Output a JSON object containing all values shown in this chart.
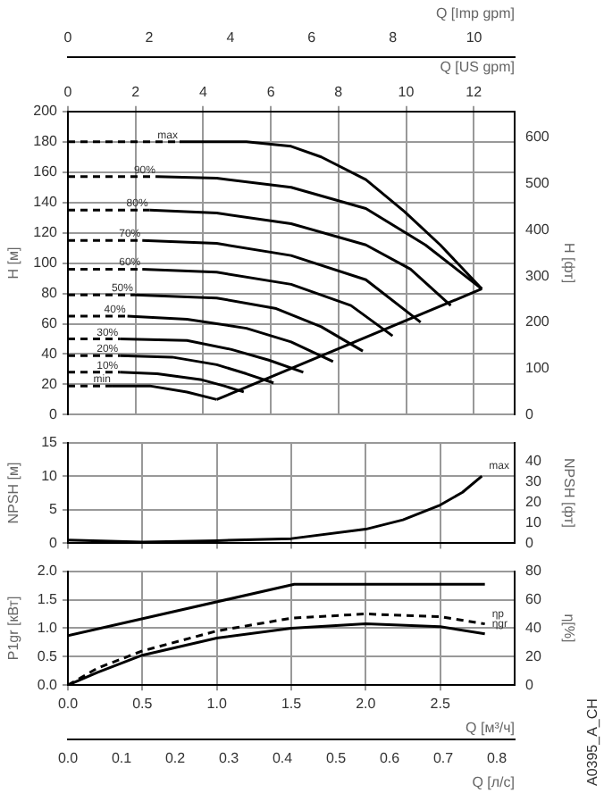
{
  "chart_data": [
    {
      "type": "line",
      "ylabel": "H [м]",
      "y2label": "H [фт]",
      "xlabel": "Q [US gpm]",
      "x2label": "Q [Imp gpm]",
      "xlim": [
        0,
        13.21
      ],
      "xticks": [
        0,
        2,
        4,
        6,
        8,
        10,
        12
      ],
      "x2lim": [
        0,
        11
      ],
      "x2ticks": [
        0,
        2,
        4,
        6,
        8,
        10
      ],
      "ylim": [
        0,
        200
      ],
      "yticks": [
        0,
        20,
        40,
        60,
        80,
        100,
        120,
        140,
        160,
        180,
        200
      ],
      "y2lim": [
        0,
        656
      ],
      "y2ticks": [
        0,
        100,
        200,
        300,
        400,
        500,
        600
      ],
      "grid": true,
      "legend": false,
      "marker": "none",
      "line_style": "solid",
      "series": [
        {
          "color": "#000000",
          "line_style": "dashed",
          "x": [
            0,
            3.3
          ],
          "values": [
            180,
            180
          ]
        },
        {
          "name": "max",
          "color": "#000000",
          "x": [
            3.3,
            5.28,
            6.6,
            7.49,
            8.81,
            9.95,
            11.01,
            12.24
          ],
          "values": [
            180,
            180,
            177,
            170,
            155,
            134,
            112,
            83
          ]
        },
        {
          "color": "#000000",
          "line_style": "dashed",
          "x": [
            0,
            2.64
          ],
          "values": [
            157,
            157
          ]
        },
        {
          "name": "90%",
          "color": "#000000",
          "x": [
            2.64,
            4.4,
            6.6,
            8.81,
            10.57,
            12.24
          ],
          "values": [
            157,
            156,
            150,
            136,
            112,
            83
          ]
        },
        {
          "color": "#000000",
          "line_style": "dashed",
          "x": [
            0,
            2.42
          ],
          "values": [
            135,
            135
          ]
        },
        {
          "name": "80%",
          "color": "#000000",
          "x": [
            2.42,
            4.4,
            6.6,
            8.81,
            10.13,
            11.32
          ],
          "values": [
            135,
            133,
            126,
            112,
            96,
            72
          ]
        },
        {
          "color": "#000000",
          "line_style": "dashed",
          "x": [
            0,
            2.2
          ],
          "values": [
            115,
            115
          ]
        },
        {
          "name": "70%",
          "color": "#000000",
          "x": [
            2.2,
            4.4,
            6.6,
            8.81,
            10.43
          ],
          "values": [
            115,
            113,
            105,
            89,
            61
          ]
        },
        {
          "color": "#000000",
          "line_style": "dashed",
          "x": [
            0,
            2.2
          ],
          "values": [
            96,
            96
          ]
        },
        {
          "name": "60%",
          "color": "#000000",
          "x": [
            2.2,
            4.4,
            6.6,
            8.37,
            9.6
          ],
          "values": [
            96,
            94,
            86,
            72,
            52
          ]
        },
        {
          "color": "#000000",
          "line_style": "dashed",
          "x": [
            0,
            1.98
          ],
          "values": [
            79,
            79
          ]
        },
        {
          "name": "50%",
          "color": "#000000",
          "x": [
            1.98,
            4.4,
            6.16,
            7.49,
            8.72
          ],
          "values": [
            79,
            77,
            70,
            58,
            42
          ]
        },
        {
          "color": "#000000",
          "line_style": "dashed",
          "x": [
            0,
            1.76
          ],
          "values": [
            65,
            65
          ]
        },
        {
          "name": "40%",
          "color": "#000000",
          "x": [
            1.76,
            3.52,
            5.28,
            6.6,
            7.84
          ],
          "values": [
            65,
            63,
            57,
            48,
            35
          ]
        },
        {
          "color": "#000000",
          "line_style": "dashed",
          "x": [
            0,
            1.54
          ],
          "values": [
            50,
            50
          ]
        },
        {
          "name": "30%",
          "color": "#000000",
          "x": [
            1.54,
            3.52,
            4.84,
            5.94,
            6.96
          ],
          "values": [
            50,
            49,
            43,
            36,
            28
          ]
        },
        {
          "color": "#000000",
          "line_style": "dashed",
          "x": [
            0,
            1.54
          ],
          "values": [
            39,
            39
          ]
        },
        {
          "name": "20%",
          "color": "#000000",
          "x": [
            1.54,
            3.08,
            4.4,
            5.28,
            6.08
          ],
          "values": [
            39,
            38,
            33,
            27,
            21
          ]
        },
        {
          "color": "#000000",
          "line_style": "dashed",
          "x": [
            0,
            1.54
          ],
          "values": [
            28,
            28
          ]
        },
        {
          "name": "10%",
          "color": "#000000",
          "x": [
            1.54,
            2.64,
            3.96,
            4.62,
            5.2
          ],
          "values": [
            28,
            27,
            23,
            19,
            15
          ]
        },
        {
          "color": "#000000",
          "line_style": "dashed",
          "x": [
            0,
            1.32
          ],
          "values": [
            19,
            19
          ]
        },
        {
          "name": "min",
          "color": "#000000",
          "x": [
            1.32,
            2.42,
            3.52,
            4.4
          ],
          "values": [
            19,
            19,
            15,
            10
          ]
        },
        {
          "color": "#000000",
          "x": [
            4.4,
            12.24
          ],
          "values": [
            10,
            83
          ]
        }
      ]
    },
    {
      "type": "line",
      "ylabel": "NPSH [м]",
      "y2label": "NPSH [фт]",
      "xlim": [
        0,
        3
      ],
      "xticks": [
        0,
        0.5,
        1,
        1.5,
        2,
        2.5
      ],
      "ylim": [
        0,
        15
      ],
      "yticks": [
        0,
        5,
        10,
        15
      ],
      "y2lim": [
        0,
        49.2
      ],
      "y2ticks": [
        0,
        10,
        20,
        30,
        40
      ],
      "tick_labels": "y",
      "grid": true,
      "legend": false,
      "marker": "none",
      "line_style": "solid",
      "series": [
        {
          "name": "max",
          "color": "#000000",
          "x": [
            0,
            0.5,
            1.0,
            1.5,
            2.0,
            2.25,
            2.5,
            2.65,
            2.78
          ],
          "values": [
            0.5,
            0.2,
            0.4,
            0.7,
            2.1,
            3.5,
            5.7,
            7.6,
            10.0
          ]
        }
      ]
    },
    {
      "type": "line",
      "xlabel": "Q [м³/ч]",
      "x2label": "Q [л/с]",
      "ylabel": "P1gr [кВт]",
      "y2label": "η[%]",
      "xlim": [
        0,
        3
      ],
      "xticks": [
        {
          "value": 0,
          "label": "0.0"
        },
        {
          "value": 0.5,
          "label": "0.5"
        },
        {
          "value": 1,
          "label": "1.0"
        },
        {
          "value": 1.5,
          "label": "1.5"
        },
        {
          "value": 2,
          "label": "2.0"
        },
        {
          "value": 2.5,
          "label": "2.5"
        }
      ],
      "x2lim": [
        0,
        0.8333
      ],
      "x2ticks": [
        {
          "value": 0,
          "label": "0.0"
        },
        0.1,
        0.2,
        0.3,
        0.4,
        0.5,
        0.6,
        0.7,
        0.8
      ],
      "ylim": [
        0,
        2
      ],
      "yticks": [
        {
          "value": 0,
          "label": "0.0"
        },
        0.5,
        {
          "value": 1,
          "label": "1.0"
        },
        1.5,
        {
          "value": 2,
          "label": "2.0"
        }
      ],
      "y2lim": [
        0,
        80
      ],
      "y2ticks": [
        0,
        20,
        40,
        60,
        80
      ],
      "grid": true,
      "legend": false,
      "marker": "none",
      "line_style": "solid",
      "annotations": [
        "A0395_A_CH"
      ],
      "series": [
        {
          "color": "#000000",
          "x": [
            0,
            1.52,
            2.8
          ],
          "values": [
            0.87,
            1.77,
            1.77
          ]
        },
        {
          "name": "ηp",
          "color": "#000000",
          "axis": "y2",
          "line_style": "dashed",
          "x": [
            0,
            0.2,
            0.5,
            1.0,
            1.5,
            2.0,
            2.5,
            2.8
          ],
          "values": [
            0,
            12,
            24,
            38,
            47,
            50,
            48,
            43
          ]
        },
        {
          "name": "ηgr",
          "color": "#000000",
          "axis": "y2",
          "x": [
            0,
            0.2,
            0.5,
            1.0,
            1.5,
            2.0,
            2.5,
            2.8
          ],
          "values": [
            0,
            9,
            21,
            33,
            40,
            43,
            41,
            36
          ]
        }
      ]
    }
  ]
}
